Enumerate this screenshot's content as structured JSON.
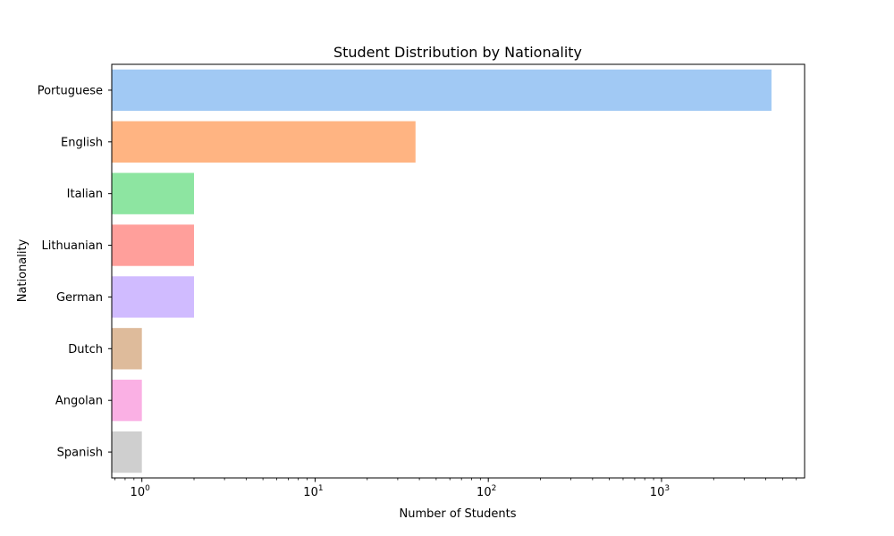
{
  "chart_data": {
    "type": "bar",
    "orientation": "horizontal",
    "title": "Student Distribution by Nationality",
    "xlabel": "Number of Students",
    "ylabel": "Nationality",
    "xscale": "log",
    "xlim": [
      0.67,
      6700
    ],
    "xticks": [
      {
        "value": 1,
        "base": "10",
        "exp": "0"
      },
      {
        "value": 10,
        "base": "10",
        "exp": "1"
      },
      {
        "value": 100,
        "base": "10",
        "exp": "2"
      },
      {
        "value": 1000,
        "base": "10",
        "exp": "3"
      }
    ],
    "categories": [
      "Portuguese",
      "English",
      "Italian",
      "Lithuanian",
      "German",
      "Dutch",
      "Angolan",
      "Spanish"
    ],
    "values": [
      4314,
      38,
      2,
      2,
      2,
      1,
      1,
      1
    ],
    "colors": [
      "#a1c9f4",
      "#ffb482",
      "#8de5a1",
      "#ff9f9b",
      "#d0bbff",
      "#debb9b",
      "#fab0e4",
      "#cfcfcf"
    ],
    "grid": false,
    "legend": "none"
  }
}
